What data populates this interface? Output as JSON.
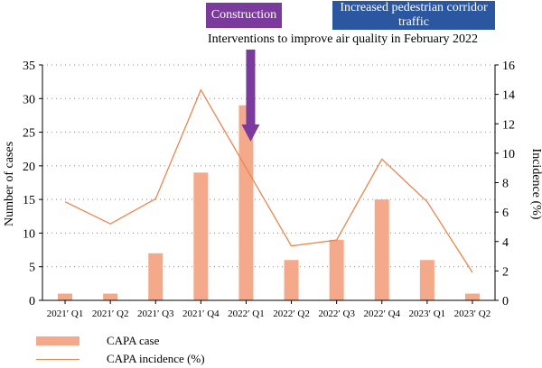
{
  "chart_data": {
    "type": "bar",
    "categories": [
      "2021′ Q1",
      "2021′ Q2",
      "2021′ Q3",
      "2021′ Q4",
      "2022′ Q1",
      "2022′ Q2",
      "2022′ Q3",
      "2022′ Q4",
      "2023′ Q1",
      "2023′ Q2"
    ],
    "series": [
      {
        "name": "CAPA case",
        "type": "bar",
        "axis": "left",
        "values": [
          1,
          1,
          7,
          19,
          29,
          6,
          9,
          15,
          6,
          1
        ]
      },
      {
        "name": "CAPA incidence (%)",
        "type": "line",
        "axis": "right",
        "values": [
          6.7,
          5.2,
          6.9,
          14.3,
          9.0,
          3.7,
          4.1,
          9.6,
          6.7,
          1.9
        ]
      }
    ],
    "ylabel": "Number of cases",
    "y2label": "Incidence (%)",
    "ylim": [
      0,
      35
    ],
    "y2lim": [
      0,
      16
    ],
    "yticks": [
      0,
      5,
      10,
      15,
      20,
      25,
      30,
      35
    ],
    "y2ticks": [
      0,
      2,
      4,
      6,
      8,
      10,
      12,
      14,
      16
    ],
    "grid": "horizontal dotted",
    "legend": "bottom-left",
    "annotations": {
      "construction": "Construction",
      "traffic": "Increased pedestrian corridor traffic",
      "intervention": "Interventions to improve air quality in February 2022",
      "arrow_at_x": 4.6
    },
    "colors": {
      "bar": "#f4aa8a",
      "line": "#e8864f",
      "construction_box": "#7b3b9d",
      "traffic_box": "#2b57a0",
      "arrow": "#7b3b9d"
    }
  }
}
